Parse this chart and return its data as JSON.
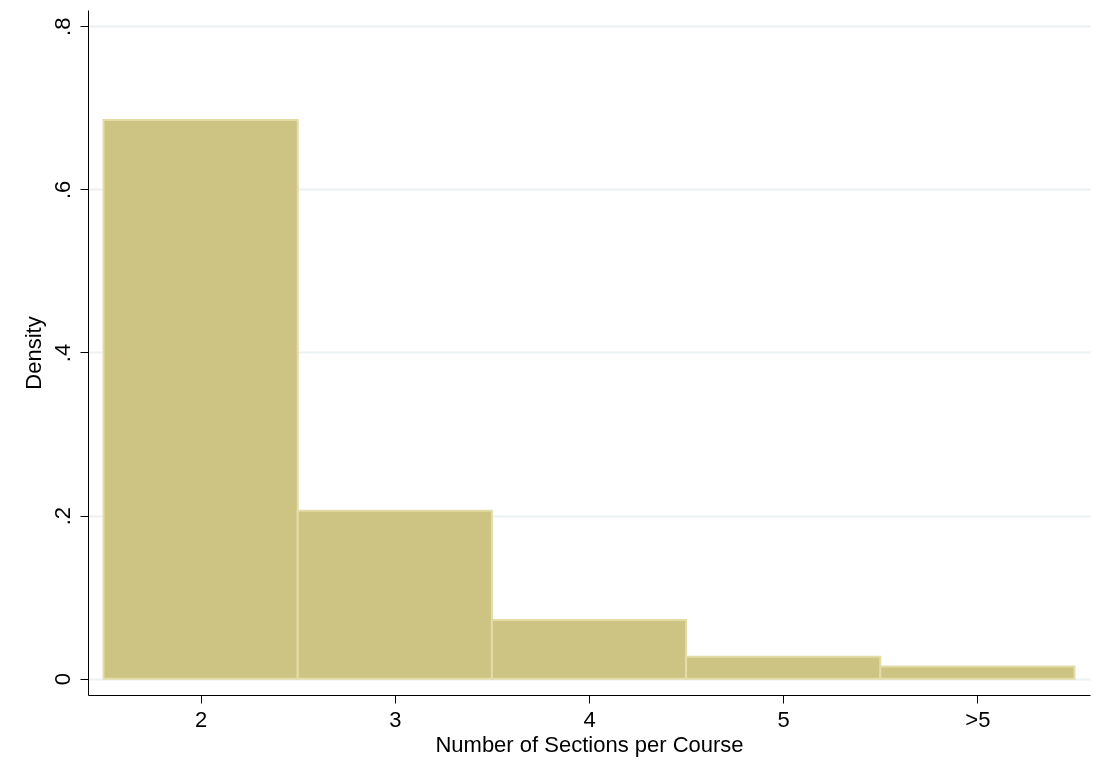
{
  "chart_data": {
    "type": "histogram",
    "xlabel": "Number of Sections per Course",
    "ylabel": "Density",
    "bins": [
      1.5,
      2.5,
      3.5,
      4.5,
      5.5,
      6.5
    ],
    "values": [
      0.685,
      0.206,
      0.072,
      0.027,
      0.015
    ],
    "color": "#cdc383",
    "xlim": [
      1.42,
      6.58
    ],
    "xticks": [
      2,
      3,
      4,
      5,
      {
        "value": 6,
        "label": ">5"
      }
    ],
    "ylim": [
      -0.02,
      0.82
    ],
    "yticks": [
      {
        "value": 0,
        "label": "0"
      },
      {
        "value": 0.2,
        "label": ".2"
      },
      {
        "value": 0.4,
        "label": ".4"
      },
      {
        "value": 0.6,
        "label": ".6"
      },
      {
        "value": 0.8,
        "label": ".8"
      }
    ],
    "grid": "y"
  }
}
